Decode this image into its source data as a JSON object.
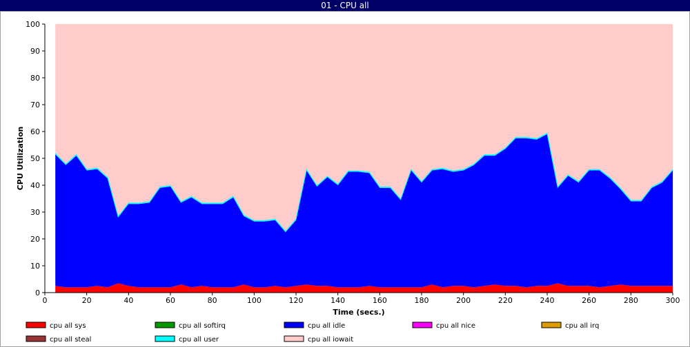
{
  "window": {
    "title": "01 - CPU all"
  },
  "chart_data": {
    "type": "area",
    "title": "01 - CPU all",
    "xlabel": "Time (secs.)",
    "ylabel": "CPU Utilization",
    "xlim": [
      0,
      300
    ],
    "ylim": [
      0,
      100
    ],
    "x_ticks": [
      0,
      20,
      40,
      60,
      80,
      100,
      120,
      140,
      160,
      180,
      200,
      220,
      240,
      260,
      280,
      300
    ],
    "y_ticks": [
      0,
      10,
      20,
      30,
      40,
      50,
      60,
      70,
      80,
      90,
      100
    ],
    "grid": false,
    "stacked": true,
    "legend_position": "bottom",
    "x": [
      5,
      10,
      15,
      20,
      25,
      30,
      35,
      40,
      45,
      50,
      55,
      60,
      65,
      70,
      75,
      80,
      85,
      90,
      95,
      100,
      105,
      110,
      115,
      120,
      125,
      130,
      135,
      140,
      145,
      150,
      155,
      160,
      165,
      170,
      175,
      180,
      185,
      190,
      195,
      200,
      205,
      210,
      215,
      220,
      225,
      230,
      235,
      240,
      245,
      250,
      255,
      260,
      265,
      270,
      275,
      280,
      285,
      290,
      295,
      300
    ],
    "series": [
      {
        "name": "cpu all sys",
        "color": "#ff0000",
        "values": [
          2.5,
          2,
          2,
          2,
          2.5,
          2,
          3.5,
          2.5,
          2,
          2,
          2,
          2,
          3,
          2,
          2.5,
          2,
          2,
          2,
          3,
          2,
          2,
          2.5,
          2,
          2.5,
          3,
          2.5,
          2.5,
          2,
          2,
          2,
          2.5,
          2,
          2,
          2,
          2,
          2,
          3,
          2,
          2.5,
          2.5,
          2,
          2.5,
          3,
          2.5,
          2.5,
          2,
          2.5,
          2.5,
          3.5,
          2.5,
          2.5,
          2.5,
          2,
          2.5,
          3,
          2.5,
          2.5,
          2.5,
          2.5,
          2.5
        ]
      },
      {
        "name": "cpu all softirq",
        "color": "#009900",
        "values": [
          0,
          0,
          0,
          0,
          0,
          0,
          0,
          0,
          0,
          0,
          0,
          0,
          0,
          0,
          0,
          0,
          0,
          0,
          0,
          0,
          0,
          0,
          0,
          0,
          0,
          0,
          0,
          0,
          0,
          0,
          0,
          0,
          0,
          0,
          0,
          0,
          0,
          0,
          0,
          0,
          0,
          0,
          0,
          0,
          0,
          0,
          0,
          0,
          0,
          0,
          0,
          0,
          0,
          0,
          0,
          0,
          0,
          0,
          0,
          0
        ]
      },
      {
        "name": "cpu all idle",
        "color": "#0000ff",
        "values": [
          49,
          45.5,
          49,
          43.5,
          43.5,
          40.5,
          24.5,
          30.5,
          31,
          31.5,
          37,
          37.5,
          30.5,
          33.5,
          30.5,
          31,
          31,
          33.5,
          25.5,
          24.5,
          24.5,
          24.5,
          20.5,
          24.5,
          42.5,
          37,
          40.5,
          38,
          43,
          43,
          42,
          37,
          37,
          32.5,
          43.5,
          39,
          42.5,
          44,
          42.5,
          43,
          45.5,
          48.5,
          48,
          51,
          55,
          55.5,
          54.5,
          56.5,
          35.5,
          41,
          38.5,
          43,
          43.5,
          40,
          35.5,
          31.5,
          31.5,
          36.5,
          38.5,
          43
        ]
      },
      {
        "name": "cpu all nice",
        "color": "#ff00ff",
        "values": [
          0,
          0,
          0,
          0,
          0,
          0,
          0,
          0,
          0,
          0,
          0,
          0,
          0,
          0,
          0,
          0,
          0,
          0,
          0,
          0,
          0,
          0,
          0,
          0,
          0,
          0,
          0,
          0,
          0,
          0,
          0,
          0,
          0,
          0,
          0,
          0,
          0,
          0,
          0,
          0,
          0,
          0,
          0,
          0,
          0,
          0,
          0,
          0,
          0,
          0,
          0,
          0,
          0,
          0,
          0,
          0,
          0,
          0,
          0,
          0
        ]
      },
      {
        "name": "cpu all irq",
        "color": "#dd9900",
        "values": [
          0,
          0,
          0,
          0,
          0,
          0,
          0,
          0,
          0,
          0,
          0,
          0,
          0,
          0,
          0,
          0,
          0,
          0,
          0,
          0,
          0,
          0,
          0,
          0,
          0,
          0,
          0,
          0,
          0,
          0,
          0,
          0,
          0,
          0,
          0,
          0,
          0,
          0,
          0,
          0,
          0,
          0,
          0,
          0,
          0,
          0,
          0,
          0,
          0,
          0,
          0,
          0,
          0,
          0,
          0,
          0,
          0,
          0,
          0,
          0
        ]
      },
      {
        "name": "cpu all steal",
        "color": "#993333",
        "values": [
          0,
          0,
          0,
          0,
          0,
          0,
          0,
          0,
          0,
          0,
          0,
          0,
          0,
          0,
          0,
          0,
          0,
          0,
          0,
          0,
          0,
          0,
          0,
          0,
          0,
          0,
          0,
          0,
          0,
          0,
          0,
          0,
          0,
          0,
          0,
          0,
          0,
          0,
          0,
          0,
          0,
          0,
          0,
          0,
          0,
          0,
          0,
          0,
          0,
          0,
          0,
          0,
          0,
          0,
          0,
          0,
          0,
          0,
          0,
          0
        ]
      },
      {
        "name": "cpu all user",
        "color": "#00ffff",
        "values": [
          0.3,
          0.3,
          0.3,
          0.3,
          0.3,
          0.3,
          0.3,
          0.3,
          0.3,
          0.3,
          0.3,
          0.3,
          0.3,
          0.3,
          0.3,
          0.3,
          0.3,
          0.3,
          0.3,
          0.3,
          0.3,
          0.3,
          0.3,
          0.3,
          0.3,
          0.3,
          0.3,
          0.3,
          0.3,
          0.3,
          0.3,
          0.3,
          0.3,
          0.3,
          0.3,
          0.3,
          0.3,
          0.3,
          0.3,
          0.3,
          0.3,
          0.3,
          0.3,
          0.3,
          0.3,
          0.3,
          0.3,
          0.3,
          0.3,
          0.3,
          0.3,
          0.3,
          0.3,
          0.3,
          0.3,
          0.3,
          0.3,
          0.3,
          0.3,
          0.3
        ]
      },
      {
        "name": "cpu all iowait",
        "color": "#ffcccc",
        "values": [
          48.2,
          52.2,
          48.7,
          54.2,
          53.7,
          57.2,
          71.7,
          66.7,
          66.7,
          66.2,
          60.7,
          60.2,
          66.2,
          64.2,
          66.7,
          66.7,
          66.7,
          64.2,
          71.2,
          73.2,
          73.2,
          72.7,
          77.2,
          72.7,
          54.2,
          60.2,
          56.7,
          59.7,
          54.7,
          54.7,
          55.2,
          60.7,
          60.7,
          65.2,
          54.2,
          58.7,
          54.2,
          53.7,
          54.7,
          54.2,
          52.2,
          48.7,
          48.7,
          46.2,
          42.2,
          42.2,
          42.7,
          40.7,
          60.7,
          56.2,
          58.7,
          54.2,
          54.2,
          57.2,
          61.2,
          65.7,
          65.7,
          60.7,
          58.7,
          54.2
        ]
      }
    ]
  }
}
